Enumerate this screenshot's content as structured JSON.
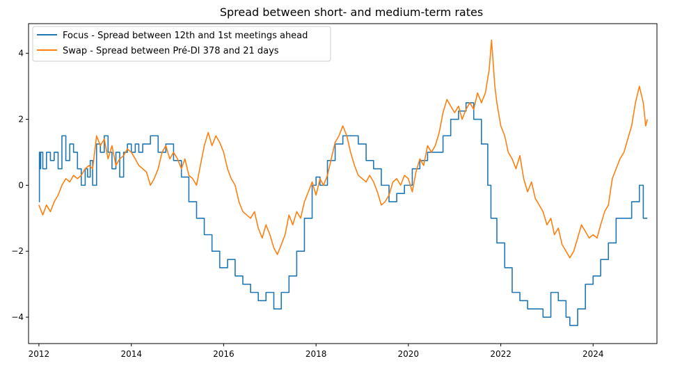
{
  "chart_data": {
    "type": "line",
    "title": "Spread between short- and medium-term rates",
    "xlabel": "",
    "ylabel": "",
    "x_type": "date",
    "xlim": [
      "2011-10-11",
      "2025-05-20"
    ],
    "ylim": [
      -4.8,
      4.9
    ],
    "x_ticks": [
      "2012",
      "2014",
      "2016",
      "2018",
      "2020",
      "2022",
      "2024"
    ],
    "y_ticks": [
      "−4",
      "−2",
      "0",
      "2",
      "4"
    ],
    "y_tick_values": [
      -4,
      -2,
      0,
      2,
      4
    ],
    "grid": false,
    "legend_position": "top-left",
    "series": [
      {
        "name": "Focus - Spread between 12th and 1st meetings ahead",
        "color": "#1f77b4",
        "points": [
          [
            "2012-01-01",
            -0.5
          ],
          [
            "2012-01-05",
            1.0
          ],
          [
            "2012-01-10",
            0.5
          ],
          [
            "2012-01-15",
            1.0
          ],
          [
            "2012-02-01",
            0.5
          ],
          [
            "2012-03-01",
            1.0
          ],
          [
            "2012-04-01",
            0.75
          ],
          [
            "2012-05-01",
            1.0
          ],
          [
            "2012-06-01",
            0.5
          ],
          [
            "2012-07-01",
            1.5
          ],
          [
            "2012-08-01",
            0.75
          ],
          [
            "2012-09-01",
            1.25
          ],
          [
            "2012-10-01",
            1.0
          ],
          [
            "2012-11-01",
            0.5
          ],
          [
            "2012-12-01",
            0.0
          ],
          [
            "2013-01-01",
            0.5
          ],
          [
            "2013-01-20",
            0.25
          ],
          [
            "2013-02-10",
            0.75
          ],
          [
            "2013-03-01",
            0.0
          ],
          [
            "2013-04-01",
            1.25
          ],
          [
            "2013-05-01",
            1.0
          ],
          [
            "2013-06-01",
            1.5
          ],
          [
            "2013-07-01",
            1.0
          ],
          [
            "2013-08-01",
            0.5
          ],
          [
            "2013-09-01",
            1.0
          ],
          [
            "2013-10-01",
            0.25
          ],
          [
            "2013-11-01",
            1.0
          ],
          [
            "2013-12-01",
            1.25
          ],
          [
            "2014-01-01",
            1.0
          ],
          [
            "2014-02-01",
            1.25
          ],
          [
            "2014-03-01",
            1.0
          ],
          [
            "2014-04-01",
            1.25
          ],
          [
            "2014-06-01",
            1.5
          ],
          [
            "2014-08-01",
            1.0
          ],
          [
            "2014-10-01",
            1.25
          ],
          [
            "2014-12-01",
            0.75
          ],
          [
            "2015-02-01",
            0.25
          ],
          [
            "2015-04-01",
            -0.5
          ],
          [
            "2015-06-01",
            -1.0
          ],
          [
            "2015-08-01",
            -1.5
          ],
          [
            "2015-10-01",
            -2.0
          ],
          [
            "2015-12-01",
            -2.5
          ],
          [
            "2016-02-01",
            -2.25
          ],
          [
            "2016-04-01",
            -2.75
          ],
          [
            "2016-06-01",
            -3.0
          ],
          [
            "2016-08-01",
            -3.25
          ],
          [
            "2016-10-01",
            -3.5
          ],
          [
            "2016-12-01",
            -3.25
          ],
          [
            "2017-02-01",
            -3.75
          ],
          [
            "2017-04-01",
            -3.25
          ],
          [
            "2017-06-01",
            -2.75
          ],
          [
            "2017-08-01",
            -2.0
          ],
          [
            "2017-10-01",
            -1.0
          ],
          [
            "2017-12-01",
            0.0
          ],
          [
            "2018-01-01",
            0.25
          ],
          [
            "2018-02-01",
            0.0
          ],
          [
            "2018-04-01",
            0.75
          ],
          [
            "2018-06-01",
            1.25
          ],
          [
            "2018-08-01",
            1.5
          ],
          [
            "2018-10-01",
            1.5
          ],
          [
            "2018-12-01",
            1.25
          ],
          [
            "2019-02-01",
            0.75
          ],
          [
            "2019-04-01",
            0.5
          ],
          [
            "2019-06-01",
            0.0
          ],
          [
            "2019-08-01",
            -0.5
          ],
          [
            "2019-10-01",
            -0.25
          ],
          [
            "2019-12-01",
            0.0
          ],
          [
            "2020-02-01",
            0.5
          ],
          [
            "2020-04-01",
            0.75
          ],
          [
            "2020-06-01",
            1.0
          ],
          [
            "2020-08-01",
            1.0
          ],
          [
            "2020-10-01",
            1.5
          ],
          [
            "2020-12-01",
            2.0
          ],
          [
            "2021-02-01",
            2.25
          ],
          [
            "2021-04-01",
            2.5
          ],
          [
            "2021-06-01",
            2.0
          ],
          [
            "2021-08-01",
            1.25
          ],
          [
            "2021-09-20",
            0.0
          ],
          [
            "2021-10-15",
            -1.0
          ],
          [
            "2021-12-01",
            -1.75
          ],
          [
            "2022-02-01",
            -2.5
          ],
          [
            "2022-04-01",
            -3.25
          ],
          [
            "2022-06-01",
            -3.5
          ],
          [
            "2022-08-01",
            -3.75
          ],
          [
            "2022-10-01",
            -3.75
          ],
          [
            "2022-12-01",
            -4.0
          ],
          [
            "2023-02-01",
            -3.25
          ],
          [
            "2023-04-01",
            -3.5
          ],
          [
            "2023-06-01",
            -4.0
          ],
          [
            "2023-07-01",
            -4.25
          ],
          [
            "2023-09-01",
            -3.75
          ],
          [
            "2023-11-01",
            -3.0
          ],
          [
            "2024-01-01",
            -2.75
          ],
          [
            "2024-03-01",
            -2.25
          ],
          [
            "2024-05-01",
            -1.75
          ],
          [
            "2024-07-01",
            -1.0
          ],
          [
            "2024-09-01",
            -1.0
          ],
          [
            "2024-11-01",
            -0.5
          ],
          [
            "2025-01-01",
            0.0
          ],
          [
            "2025-02-01",
            -1.0
          ],
          [
            "2025-03-05",
            -1.0
          ]
        ]
      },
      {
        "name": "Swap - Spread between Pré-DI 378 and 21 days",
        "color": "#ff7f0e",
        "points": [
          [
            "2012-01-01",
            -0.6
          ],
          [
            "2012-02-01",
            -0.9
          ],
          [
            "2012-03-01",
            -0.6
          ],
          [
            "2012-04-01",
            -0.8
          ],
          [
            "2012-05-01",
            -0.5
          ],
          [
            "2012-06-01",
            -0.3
          ],
          [
            "2012-07-01",
            0.0
          ],
          [
            "2012-08-01",
            0.2
          ],
          [
            "2012-09-01",
            0.1
          ],
          [
            "2012-10-01",
            0.3
          ],
          [
            "2012-11-01",
            0.2
          ],
          [
            "2012-12-01",
            0.3
          ],
          [
            "2013-01-01",
            0.5
          ],
          [
            "2013-02-01",
            0.6
          ],
          [
            "2013-03-01",
            0.5
          ],
          [
            "2013-04-01",
            1.5
          ],
          [
            "2013-05-01",
            1.2
          ],
          [
            "2013-06-01",
            1.4
          ],
          [
            "2013-07-01",
            0.8
          ],
          [
            "2013-08-01",
            1.2
          ],
          [
            "2013-09-01",
            0.6
          ],
          [
            "2013-10-01",
            0.8
          ],
          [
            "2013-11-01",
            0.9
          ],
          [
            "2013-12-01",
            1.1
          ],
          [
            "2014-01-01",
            1.0
          ],
          [
            "2014-02-01",
            0.8
          ],
          [
            "2014-03-01",
            0.6
          ],
          [
            "2014-04-01",
            0.5
          ],
          [
            "2014-05-01",
            0.4
          ],
          [
            "2014-06-01",
            0.0
          ],
          [
            "2014-07-01",
            0.2
          ],
          [
            "2014-08-01",
            0.5
          ],
          [
            "2014-09-01",
            1.0
          ],
          [
            "2014-10-01",
            1.2
          ],
          [
            "2014-11-01",
            0.8
          ],
          [
            "2014-12-01",
            1.0
          ],
          [
            "2015-01-01",
            0.8
          ],
          [
            "2015-02-01",
            0.5
          ],
          [
            "2015-03-01",
            0.8
          ],
          [
            "2015-04-01",
            0.3
          ],
          [
            "2015-05-01",
            0.2
          ],
          [
            "2015-06-01",
            0.0
          ],
          [
            "2015-07-01",
            0.6
          ],
          [
            "2015-08-01",
            1.2
          ],
          [
            "2015-09-01",
            1.6
          ],
          [
            "2015-10-01",
            1.2
          ],
          [
            "2015-11-01",
            1.5
          ],
          [
            "2015-12-01",
            1.3
          ],
          [
            "2016-01-01",
            1.0
          ],
          [
            "2016-02-01",
            0.5
          ],
          [
            "2016-03-01",
            0.2
          ],
          [
            "2016-04-01",
            0.0
          ],
          [
            "2016-05-01",
            -0.5
          ],
          [
            "2016-06-01",
            -0.8
          ],
          [
            "2016-07-01",
            -0.9
          ],
          [
            "2016-08-01",
            -1.0
          ],
          [
            "2016-09-01",
            -0.8
          ],
          [
            "2016-10-01",
            -1.3
          ],
          [
            "2016-11-01",
            -1.6
          ],
          [
            "2016-12-01",
            -1.2
          ],
          [
            "2017-01-01",
            -1.5
          ],
          [
            "2017-02-01",
            -1.9
          ],
          [
            "2017-03-01",
            -2.1
          ],
          [
            "2017-04-01",
            -1.8
          ],
          [
            "2017-05-01",
            -1.5
          ],
          [
            "2017-06-01",
            -0.9
          ],
          [
            "2017-07-01",
            -1.2
          ],
          [
            "2017-08-01",
            -0.8
          ],
          [
            "2017-09-01",
            -1.0
          ],
          [
            "2017-10-01",
            -0.5
          ],
          [
            "2017-11-01",
            -0.2
          ],
          [
            "2017-12-01",
            0.1
          ],
          [
            "2018-01-01",
            -0.3
          ],
          [
            "2018-02-01",
            0.2
          ],
          [
            "2018-03-01",
            0.0
          ],
          [
            "2018-04-01",
            0.3
          ],
          [
            "2018-05-01",
            0.8
          ],
          [
            "2018-06-01",
            1.3
          ],
          [
            "2018-07-01",
            1.5
          ],
          [
            "2018-08-01",
            1.8
          ],
          [
            "2018-09-01",
            1.5
          ],
          [
            "2018-10-01",
            1.0
          ],
          [
            "2018-11-01",
            0.6
          ],
          [
            "2018-12-01",
            0.3
          ],
          [
            "2019-01-01",
            0.2
          ],
          [
            "2019-02-01",
            0.1
          ],
          [
            "2019-03-01",
            0.3
          ],
          [
            "2019-04-01",
            0.1
          ],
          [
            "2019-05-01",
            -0.2
          ],
          [
            "2019-06-01",
            -0.6
          ],
          [
            "2019-07-01",
            -0.5
          ],
          [
            "2019-08-01",
            -0.3
          ],
          [
            "2019-09-01",
            0.1
          ],
          [
            "2019-10-01",
            0.2
          ],
          [
            "2019-11-01",
            0.0
          ],
          [
            "2019-12-01",
            0.3
          ],
          [
            "2020-01-01",
            0.2
          ],
          [
            "2020-02-01",
            -0.2
          ],
          [
            "2020-03-01",
            0.4
          ],
          [
            "2020-04-01",
            0.8
          ],
          [
            "2020-05-01",
            0.6
          ],
          [
            "2020-06-01",
            1.2
          ],
          [
            "2020-07-01",
            1.0
          ],
          [
            "2020-08-01",
            1.2
          ],
          [
            "2020-09-01",
            1.6
          ],
          [
            "2020-10-01",
            2.2
          ],
          [
            "2020-11-01",
            2.6
          ],
          [
            "2020-12-01",
            2.4
          ],
          [
            "2021-01-01",
            2.2
          ],
          [
            "2021-02-01",
            2.4
          ],
          [
            "2021-03-01",
            2.0
          ],
          [
            "2021-04-01",
            2.3
          ],
          [
            "2021-05-01",
            2.5
          ],
          [
            "2021-06-01",
            2.3
          ],
          [
            "2021-07-01",
            2.8
          ],
          [
            "2021-08-01",
            2.5
          ],
          [
            "2021-09-01",
            2.8
          ],
          [
            "2021-10-01",
            3.5
          ],
          [
            "2021-10-20",
            4.4
          ],
          [
            "2021-11-15",
            3.0
          ],
          [
            "2021-12-01",
            2.5
          ],
          [
            "2022-01-01",
            1.8
          ],
          [
            "2022-02-01",
            1.5
          ],
          [
            "2022-03-01",
            1.0
          ],
          [
            "2022-04-01",
            0.8
          ],
          [
            "2022-05-01",
            0.5
          ],
          [
            "2022-06-01",
            0.9
          ],
          [
            "2022-07-01",
            0.2
          ],
          [
            "2022-08-01",
            -0.2
          ],
          [
            "2022-09-01",
            0.1
          ],
          [
            "2022-10-01",
            -0.4
          ],
          [
            "2022-11-01",
            -0.6
          ],
          [
            "2022-12-01",
            -0.8
          ],
          [
            "2023-01-01",
            -1.2
          ],
          [
            "2023-02-01",
            -1.0
          ],
          [
            "2023-03-01",
            -1.5
          ],
          [
            "2023-04-01",
            -1.3
          ],
          [
            "2023-05-01",
            -1.8
          ],
          [
            "2023-06-01",
            -2.0
          ],
          [
            "2023-07-01",
            -2.2
          ],
          [
            "2023-08-01",
            -2.0
          ],
          [
            "2023-09-01",
            -1.6
          ],
          [
            "2023-10-01",
            -1.2
          ],
          [
            "2023-11-01",
            -1.4
          ],
          [
            "2023-12-01",
            -1.6
          ],
          [
            "2024-01-01",
            -1.5
          ],
          [
            "2024-02-01",
            -1.6
          ],
          [
            "2024-03-01",
            -1.2
          ],
          [
            "2024-04-01",
            -0.8
          ],
          [
            "2024-05-01",
            -0.6
          ],
          [
            "2024-06-01",
            0.2
          ],
          [
            "2024-07-01",
            0.5
          ],
          [
            "2024-08-01",
            0.8
          ],
          [
            "2024-09-01",
            1.0
          ],
          [
            "2024-10-01",
            1.4
          ],
          [
            "2024-11-01",
            1.8
          ],
          [
            "2024-12-01",
            2.5
          ],
          [
            "2025-01-01",
            3.0
          ],
          [
            "2025-02-01",
            2.5
          ],
          [
            "2025-02-20",
            1.8
          ],
          [
            "2025-03-05",
            2.0
          ]
        ]
      }
    ]
  }
}
